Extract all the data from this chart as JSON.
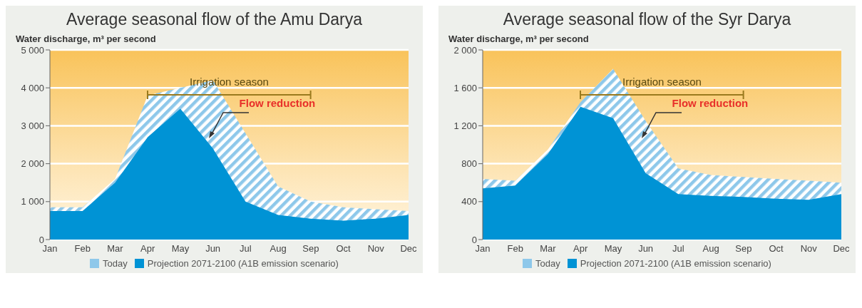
{
  "chart_data": [
    {
      "type": "area",
      "title": "Average seasonal flow of the Amu Darya",
      "ylabel": "Water discharge, m³ per second",
      "categories": [
        "Jan",
        "Feb",
        "Mar",
        "Apr",
        "May",
        "Jun",
        "Jul",
        "Aug",
        "Sep",
        "Oct",
        "Nov",
        "Dec"
      ],
      "series": [
        {
          "name": "Today",
          "color": "#8ec8ea",
          "values": [
            850,
            850,
            1600,
            3800,
            4000,
            4200,
            2800,
            1400,
            1000,
            850,
            800,
            750
          ]
        },
        {
          "name": "Projection 2071-2100 (A1B emission scenario)",
          "color": "#0093d5",
          "values": [
            750,
            750,
            1500,
            2700,
            3450,
            2400,
            1000,
            650,
            550,
            500,
            550,
            650
          ]
        }
      ],
      "ylim": [
        0,
        5000
      ],
      "yticks": [
        {
          "value": 0,
          "label": "0"
        },
        {
          "value": 1000,
          "label": "1 000"
        },
        {
          "value": 2000,
          "label": "2 000"
        },
        {
          "value": 3000,
          "label": "3 000"
        },
        {
          "value": 4000,
          "label": "4 000"
        },
        {
          "value": 5000,
          "label": "5 000"
        }
      ],
      "annotations": [
        "Irrigation season",
        "Flow reduction"
      ],
      "grid": "y",
      "legend": "bottom"
    },
    {
      "type": "area",
      "title": "Average seasonal flow of the Syr Darya",
      "ylabel": "Water discharge, m³ per second",
      "categories": [
        "Jan",
        "Feb",
        "Mar",
        "Apr",
        "May",
        "Jun",
        "Jul",
        "Aug",
        "Sep",
        "Oct",
        "Nov",
        "Dec"
      ],
      "series": [
        {
          "name": "Today",
          "color": "#8ec8ea",
          "values": [
            640,
            620,
            950,
            1450,
            1800,
            1250,
            750,
            680,
            660,
            640,
            620,
            600
          ]
        },
        {
          "name": "Projection 2071-2100 (A1B emission scenario)",
          "color": "#0093d5",
          "values": [
            540,
            570,
            900,
            1400,
            1280,
            700,
            480,
            460,
            450,
            430,
            420,
            480
          ]
        }
      ],
      "ylim": [
        0,
        2000
      ],
      "yticks": [
        {
          "value": 0,
          "label": "0"
        },
        {
          "value": 400,
          "label": "400"
        },
        {
          "value": 800,
          "label": "800"
        },
        {
          "value": 1200,
          "label": "1 200"
        },
        {
          "value": 1600,
          "label": "1 600"
        },
        {
          "value": 2000,
          "label": "2 000"
        }
      ],
      "annotations": [
        "Irrigation season",
        "Flow reduction"
      ],
      "grid": "y",
      "legend": "bottom"
    }
  ]
}
